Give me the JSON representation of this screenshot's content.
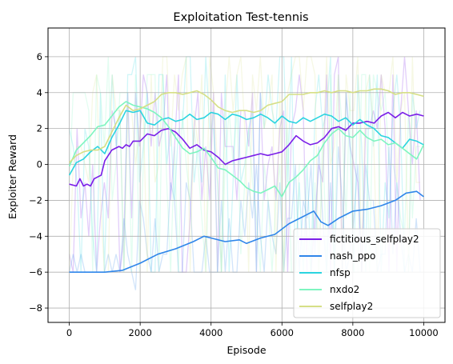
{
  "chart_data": {
    "type": "line",
    "title": "Exploitation Test-tennis",
    "xlabel": "Episode",
    "ylabel": "Exploiter Reward",
    "xlim": [
      -600,
      10600
    ],
    "ylim": [
      -8.8,
      7.6
    ],
    "xticks": [
      0,
      2000,
      4000,
      6000,
      8000,
      10000
    ],
    "yticks": [
      -8,
      -6,
      -4,
      -2,
      0,
      2,
      4,
      6
    ],
    "grid": true,
    "legend_position": "lower-right",
    "series": [
      {
        "name": "fictitious_selfplay2",
        "color": "#7b1fe8",
        "x": [
          0,
          200,
          300,
          400,
          500,
          600,
          700,
          800,
          900,
          1000,
          1200,
          1400,
          1500,
          1600,
          1700,
          1800,
          2000,
          2200,
          2400,
          2600,
          2800,
          3000,
          3200,
          3400,
          3600,
          3800,
          4000,
          4200,
          4400,
          4600,
          4800,
          5000,
          5200,
          5400,
          5600,
          5800,
          6000,
          6200,
          6400,
          6600,
          6800,
          7000,
          7200,
          7400,
          7600,
          7800,
          8000,
          8200,
          8400,
          8600,
          8800,
          9000,
          9200,
          9400,
          9600,
          9800,
          10000
        ],
        "y": [
          -1.1,
          -1.2,
          -0.8,
          -1.2,
          -1.1,
          -1.2,
          -0.8,
          -0.7,
          -0.6,
          0.2,
          0.8,
          1.0,
          0.9,
          1.1,
          1.0,
          1.3,
          1.3,
          1.7,
          1.6,
          1.9,
          2.0,
          1.8,
          1.4,
          0.9,
          1.1,
          0.8,
          0.7,
          0.4,
          0.0,
          0.2,
          0.3,
          0.4,
          0.5,
          0.6,
          0.5,
          0.6,
          0.7,
          1.1,
          1.6,
          1.3,
          1.1,
          1.2,
          1.5,
          2.0,
          2.1,
          1.9,
          2.3,
          2.3,
          2.4,
          2.3,
          2.7,
          2.9,
          2.6,
          2.9,
          2.7,
          2.8,
          2.7
        ]
      },
      {
        "name": "nash_ppo",
        "color": "#2f86ea",
        "x": [
          0,
          500,
          1000,
          1500,
          2000,
          2500,
          3000,
          3500,
          3800,
          4000,
          4400,
          4800,
          5000,
          5400,
          5800,
          6200,
          6600,
          6900,
          7100,
          7300,
          7600,
          8000,
          8400,
          8800,
          9200,
          9500,
          9800,
          10000
        ],
        "y": [
          -6.0,
          -6.0,
          -6.0,
          -5.9,
          -5.5,
          -5.0,
          -4.7,
          -4.3,
          -4.0,
          -4.1,
          -4.3,
          -4.2,
          -4.4,
          -4.1,
          -3.9,
          -3.3,
          -2.9,
          -2.6,
          -3.2,
          -3.4,
          -3.0,
          -2.6,
          -2.5,
          -2.3,
          -2.0,
          -1.6,
          -1.5,
          -1.8
        ]
      },
      {
        "name": "nfsp",
        "color": "#2bd4e0",
        "x": [
          0,
          200,
          400,
          600,
          800,
          1000,
          1200,
          1400,
          1600,
          1800,
          2000,
          2200,
          2400,
          2600,
          2800,
          3000,
          3200,
          3400,
          3600,
          3800,
          4000,
          4200,
          4400,
          4600,
          4800,
          5000,
          5200,
          5400,
          5600,
          5800,
          6000,
          6200,
          6400,
          6600,
          6800,
          7000,
          7200,
          7400,
          7600,
          7800,
          8000,
          8200,
          8400,
          8600,
          8800,
          9000,
          9200,
          9400,
          9600,
          9800,
          10000
        ],
        "y": [
          -0.6,
          0.1,
          0.3,
          0.7,
          1.0,
          0.6,
          1.5,
          2.2,
          3.0,
          2.9,
          3.0,
          2.3,
          2.2,
          2.5,
          2.6,
          2.4,
          2.5,
          2.8,
          2.5,
          2.6,
          2.9,
          2.8,
          2.5,
          2.8,
          2.7,
          2.5,
          2.6,
          2.8,
          2.6,
          2.3,
          2.7,
          2.4,
          2.3,
          2.6,
          2.4,
          2.6,
          2.8,
          2.7,
          2.4,
          2.6,
          2.2,
          2.5,
          2.2,
          2.0,
          1.6,
          1.5,
          1.2,
          0.9,
          1.4,
          1.3,
          1.1
        ]
      },
      {
        "name": "nxdo2",
        "color": "#7ef5c0",
        "x": [
          0,
          200,
          400,
          600,
          800,
          1000,
          1200,
          1400,
          1600,
          1800,
          2000,
          2200,
          2400,
          2600,
          2800,
          3000,
          3200,
          3400,
          3600,
          3800,
          4000,
          4200,
          4400,
          4600,
          4800,
          5000,
          5200,
          5400,
          5600,
          5800,
          6000,
          6200,
          6400,
          6600,
          6800,
          7000,
          7200,
          7400,
          7600,
          7800,
          8000,
          8200,
          8400,
          8600,
          8800,
          9000,
          9200,
          9400,
          9600,
          9800,
          10000
        ],
        "y": [
          -0.1,
          0.8,
          1.2,
          1.6,
          2.1,
          2.2,
          2.7,
          3.2,
          3.5,
          3.3,
          3.2,
          3.1,
          2.9,
          2.6,
          2.1,
          1.5,
          0.9,
          0.6,
          0.7,
          0.9,
          0.4,
          -0.2,
          -0.3,
          -0.6,
          -0.9,
          -1.3,
          -1.5,
          -1.6,
          -1.4,
          -1.2,
          -1.8,
          -1.0,
          -0.7,
          -0.3,
          0.2,
          0.5,
          1.2,
          1.7,
          2.0,
          1.6,
          1.5,
          1.9,
          1.5,
          1.3,
          1.4,
          1.1,
          1.2,
          0.9,
          0.6,
          0.3,
          1.1
        ]
      },
      {
        "name": "selfplay2",
        "color": "#d6df86",
        "x": [
          0,
          200,
          400,
          600,
          800,
          1000,
          1200,
          1400,
          1600,
          1800,
          2000,
          2200,
          2400,
          2600,
          2800,
          3000,
          3200,
          3400,
          3600,
          3800,
          4000,
          4200,
          4400,
          4600,
          4800,
          5000,
          5200,
          5400,
          5600,
          5800,
          6000,
          6200,
          6400,
          6600,
          6800,
          7000,
          7200,
          7400,
          7600,
          7800,
          8000,
          8200,
          8400,
          8600,
          8800,
          9000,
          9200,
          9400,
          9600,
          9800,
          10000
        ],
        "y": [
          0.1,
          0.5,
          0.7,
          0.8,
          0.8,
          1.0,
          1.8,
          2.6,
          3.3,
          3.0,
          3.1,
          3.3,
          3.5,
          3.9,
          4.0,
          4.0,
          3.9,
          4.0,
          4.1,
          3.9,
          3.6,
          3.2,
          3.0,
          2.9,
          3.0,
          3.0,
          2.9,
          3.0,
          3.3,
          3.4,
          3.5,
          3.9,
          3.9,
          3.9,
          4.0,
          4.0,
          4.1,
          4.0,
          4.1,
          4.1,
          4.0,
          4.1,
          4.1,
          4.2,
          4.2,
          4.1,
          3.9,
          4.0,
          4.0,
          3.9,
          3.8
        ]
      }
    ]
  }
}
